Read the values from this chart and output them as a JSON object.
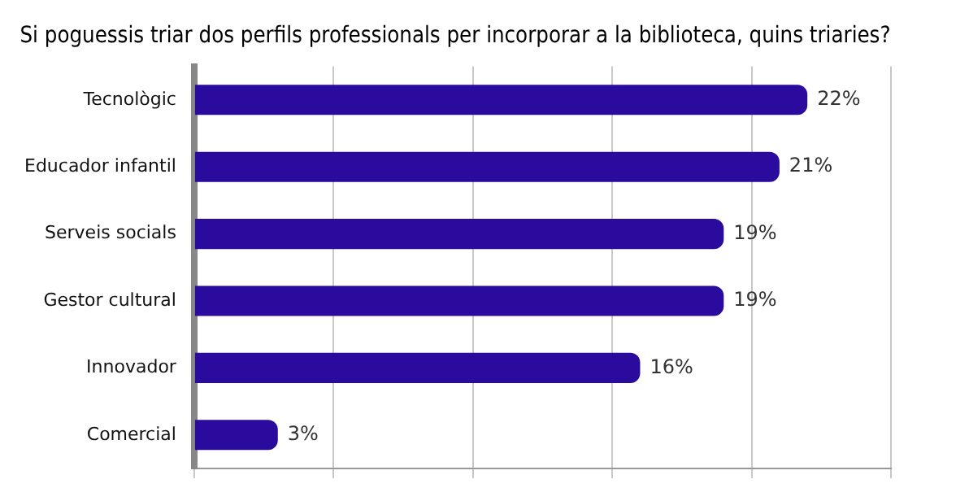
{
  "chart_data": {
    "type": "bar",
    "orientation": "horizontal",
    "title": "Si poguessis triar dos perfils professionals per incorporar a la biblioteca, quins triaries?",
    "categories": [
      "Tecnològic",
      "Educador infantil",
      "Serveis socials",
      "Gestor cultural",
      "Innovador",
      "Comercial"
    ],
    "values": [
      22,
      21,
      19,
      19,
      16,
      3
    ],
    "value_labels": [
      "22%",
      "21%",
      "19%",
      "19%",
      "16%",
      "3%"
    ],
    "color": "#2b0a9e",
    "xlim": [
      0,
      25
    ],
    "xticks": [
      {
        "value": 0,
        "label": null
      },
      {
        "value": 5,
        "label": null
      },
      {
        "value": 10,
        "label": null
      },
      {
        "value": 15,
        "label": null
      },
      {
        "value": 20,
        "label": null
      },
      {
        "value": 25,
        "label": null
      }
    ],
    "tick_labels": "y",
    "grid": "x",
    "legend": false
  }
}
